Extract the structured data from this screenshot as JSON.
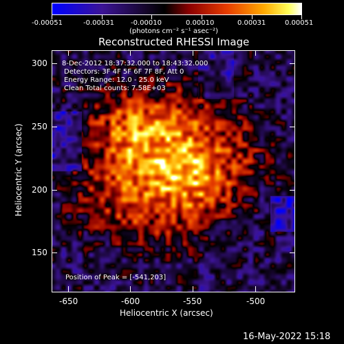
{
  "colorbar": {
    "tick_labels": [
      "-0.00051",
      "-0.00031",
      "-0.00010",
      "0.00010",
      "0.00031",
      "0.00051"
    ],
    "units": "(photons cm⁻² s⁻¹ asec⁻²)",
    "colors": [
      "#0000ff",
      "#3a0a8a",
      "#000000",
      "#8b0000",
      "#e23a00",
      "#ffa500",
      "#ffff60",
      "#ffffff"
    ]
  },
  "plot": {
    "title": "Reconstructed RHESSI Image",
    "xlabel": "Heliocentric X (arcsec)",
    "ylabel": "Heliocentric Y (arcsec)",
    "x_ticks": [
      "-650",
      "-600",
      "-550",
      "-500"
    ],
    "y_ticks": [
      "150",
      "200",
      "250",
      "300"
    ],
    "x_range": [
      -665,
      -470
    ],
    "y_range": [
      115,
      310
    ],
    "annotations": {
      "time_range": "8-Dec-2012 18:37:32.000 to 18:43:32.000",
      "detectors": "Detectors: 3F 4F 5F 6F 7F 8F, Att 0",
      "energy": "Energy Range: 12.0 - 25.0 keV",
      "clean": "Clean     Total counts: 7.58E+03",
      "peak": "Position of Peak = [-541,203]"
    }
  },
  "footer": {
    "timestamp": "16-May-2022 15:18"
  }
}
